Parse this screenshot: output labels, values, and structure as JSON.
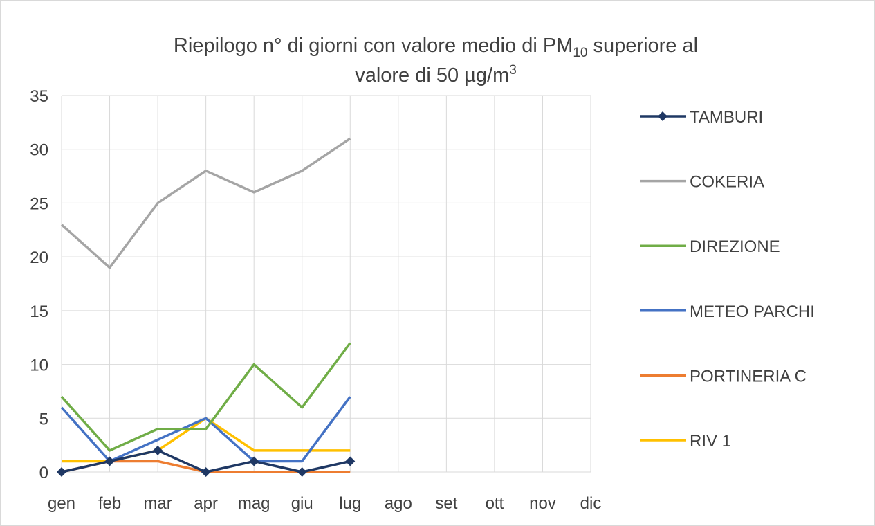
{
  "chart_data": {
    "type": "line",
    "title_parts": [
      "Riepilogo  n° di giorni con valore medio di PM",
      "10",
      " superiore al",
      "valore di 50 µg/m",
      "3"
    ],
    "categories": [
      "gen",
      "feb",
      "mar",
      "apr",
      "mag",
      "giu",
      "lug",
      "ago",
      "set",
      "ott",
      "nov",
      "dic"
    ],
    "series": [
      {
        "name": "TAMBURI",
        "color": "#1f3864",
        "marker": "diamond",
        "values": [
          0,
          1,
          2,
          0,
          1,
          0,
          1,
          null,
          null,
          null,
          null,
          null
        ]
      },
      {
        "name": "COKERIA",
        "color": "#a5a5a5",
        "values": [
          23,
          19,
          25,
          28,
          26,
          28,
          31,
          null,
          null,
          null,
          null,
          null
        ]
      },
      {
        "name": "DIREZIONE",
        "color": "#70ad47",
        "values": [
          7,
          2,
          4,
          4,
          10,
          6,
          12,
          null,
          null,
          null,
          null,
          null
        ]
      },
      {
        "name": "METEO PARCHI",
        "color": "#4472c4",
        "values": [
          6,
          1,
          3,
          5,
          1,
          1,
          7,
          null,
          null,
          null,
          null,
          null
        ]
      },
      {
        "name": "PORTINERIA C",
        "color": "#ed7d31",
        "values": [
          0,
          1,
          1,
          0,
          0,
          0,
          0,
          null,
          null,
          null,
          null,
          null
        ]
      },
      {
        "name": "RIV 1",
        "color": "#ffc000",
        "values": [
          1,
          1,
          2,
          5,
          2,
          2,
          2,
          null,
          null,
          null,
          null,
          null
        ]
      }
    ],
    "ylim": [
      0,
      35
    ],
    "yticks": [
      0,
      5,
      10,
      15,
      20,
      25,
      30,
      35
    ],
    "grid": true,
    "legend": "right"
  }
}
